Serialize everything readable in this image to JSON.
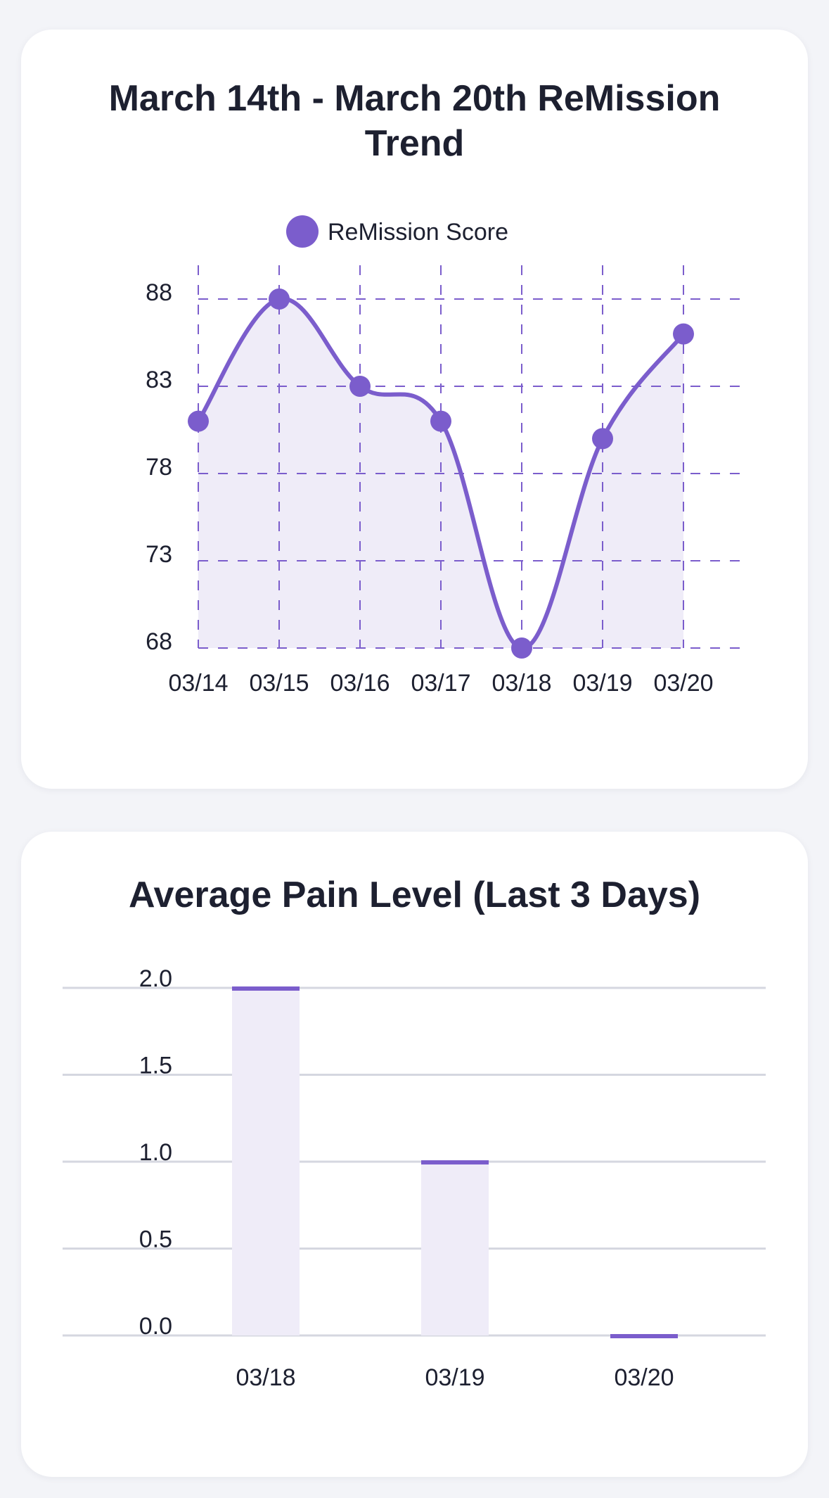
{
  "colors": {
    "accent": "#7b5dcc",
    "fill": "#efecf8",
    "grid_bar": "#d5d7e0"
  },
  "chart_data": [
    {
      "type": "line",
      "title": "March 14th - March 20th ReMission Trend",
      "legend": "ReMission Score",
      "legend_position": "top-center",
      "categories": [
        "03/14",
        "03/15",
        "03/16",
        "03/17",
        "03/18",
        "03/19",
        "03/20"
      ],
      "series": [
        {
          "name": "ReMission Score",
          "values": [
            81,
            88,
            83,
            81,
            68,
            80,
            86
          ]
        }
      ],
      "yticks": [
        68,
        73,
        78,
        83,
        88
      ],
      "ylim": [
        68,
        88
      ],
      "grid": "dashed",
      "area_fill": true
    },
    {
      "type": "bar",
      "title": "Average Pain Level (Last 3 Days)",
      "categories": [
        "03/18",
        "03/19",
        "03/20"
      ],
      "values": [
        2.0,
        1.0,
        0.0
      ],
      "yticks": [
        "0.0",
        "0.5",
        "1.0",
        "1.5",
        "2.0"
      ],
      "ylim": [
        0,
        2
      ],
      "grid": "horizontal"
    }
  ]
}
